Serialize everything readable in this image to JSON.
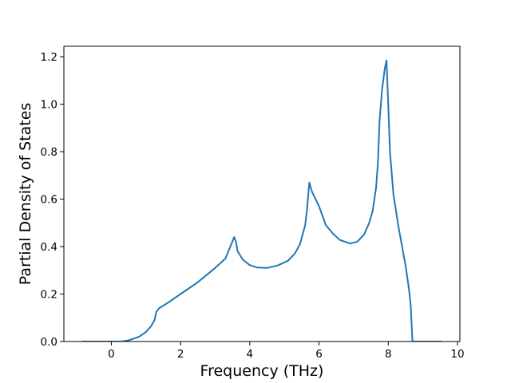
{
  "chart_data": {
    "type": "line",
    "xlabel": "Frequency (THz)",
    "ylabel": "Partial Density of States",
    "color": "#1f77b4",
    "xlim": [
      -1.37,
      10.07
    ],
    "ylim": [
      0,
      1.244
    ],
    "xticks": [
      0,
      2,
      4,
      6,
      8,
      10
    ],
    "yticks": [
      {
        "value": 0,
        "label": "0.0"
      },
      0.2,
      0.4,
      0.6,
      0.8,
      {
        "value": 1,
        "label": "1.0"
      },
      1.2
    ],
    "x": [
      -0.85,
      0.3,
      0.5,
      0.8,
      1.0,
      1.15,
      1.25,
      1.3,
      1.38,
      1.6,
      2.0,
      2.5,
      3.0,
      3.3,
      3.55,
      3.6,
      3.65,
      3.8,
      4.0,
      4.2,
      4.5,
      4.8,
      5.1,
      5.3,
      5.45,
      5.6,
      5.65,
      5.72,
      5.8,
      6.0,
      6.1,
      6.2,
      6.4,
      6.6,
      6.9,
      7.1,
      7.3,
      7.45,
      7.55,
      7.65,
      7.7,
      7.75,
      7.82,
      7.9,
      7.95,
      8.0,
      8.05,
      8.15,
      8.3,
      8.5,
      8.6,
      8.65,
      8.7,
      9.55
    ],
    "values": [
      0,
      0,
      0.005,
      0.02,
      0.04,
      0.065,
      0.09,
      0.125,
      0.14,
      0.16,
      0.2,
      0.25,
      0.31,
      0.35,
      0.44,
      0.42,
      0.38,
      0.345,
      0.322,
      0.312,
      0.31,
      0.32,
      0.34,
      0.37,
      0.41,
      0.49,
      0.55,
      0.67,
      0.63,
      0.57,
      0.53,
      0.49,
      0.455,
      0.428,
      0.413,
      0.42,
      0.45,
      0.5,
      0.55,
      0.65,
      0.75,
      0.93,
      1.06,
      1.15,
      1.185,
      1.0,
      0.8,
      0.62,
      0.48,
      0.32,
      0.22,
      0.15,
      0,
      0
    ]
  }
}
